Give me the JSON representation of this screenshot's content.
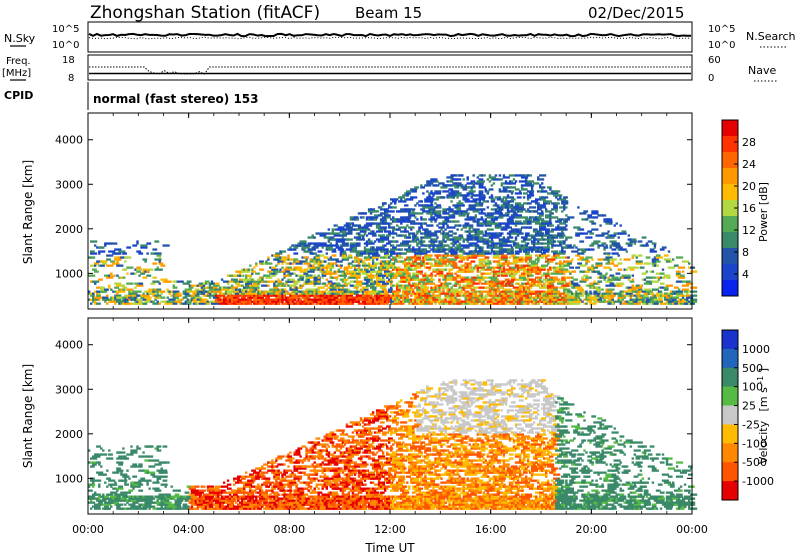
{
  "header": {
    "station": "Zhongshan Station (fitACF)",
    "beam": "Beam 15",
    "date": "02/Dec/2015"
  },
  "nsky": {
    "label": "N.Sky",
    "ticks": [
      "10^5",
      "10^0"
    ],
    "right_ticks": [
      "10^5",
      "10^0"
    ],
    "right_label": "N.Search"
  },
  "freq": {
    "label_top": "Freq.",
    "label_bottom": "[MHz]",
    "ticks": [
      "18",
      "8"
    ],
    "right_ticks": [
      "60",
      "0"
    ],
    "right_label": "Nave"
  },
  "cpid": {
    "label": "CPID",
    "text": "normal (fast stereo) 153"
  },
  "chart_data": [
    {
      "type": "heatmap",
      "name": "power",
      "ylabel": "Slant Range [km]",
      "yticks": [
        "1000",
        "2000",
        "3000",
        "4000"
      ],
      "ylim": [
        200,
        4600
      ],
      "x": [
        "00:00",
        "04:00",
        "08:00",
        "12:00",
        "16:00",
        "20:00",
        "00:00"
      ],
      "colorbar": {
        "label": "Power [dB]",
        "ticks": [
          "28",
          "24",
          "20",
          "16",
          "12",
          "8",
          "4"
        ],
        "colors": [
          "#e60000",
          "#ff3300",
          "#ff6600",
          "#ff9900",
          "#ffbb00",
          "#b3d940",
          "#55aa55",
          "#3a8a6a",
          "#2255aa",
          "#1a44cc",
          "#0a22ee"
        ]
      }
    },
    {
      "type": "heatmap",
      "name": "velocity",
      "ylabel": "Slant Range [km]",
      "ylabel_unit": "[m s",
      "ylabel_exp": "-1",
      "yticks": [
        "1000",
        "2000",
        "3000",
        "4000"
      ],
      "ylim": [
        200,
        4600
      ],
      "x": [
        "00:00",
        "04:00",
        "08:00",
        "12:00",
        "16:00",
        "20:00",
        "00:00"
      ],
      "xlabel": "Time UT",
      "colorbar": {
        "label": "Velocity",
        "ticks": [
          "1000",
          "500",
          "100",
          "25",
          "-25",
          "-100",
          "-500",
          "-1000"
        ],
        "colors": [
          "#1a33cc",
          "#2266bb",
          "#3a8a6a",
          "#55bb44",
          "#c8c8c8",
          "#ffbb00",
          "#ff8800",
          "#ff5500",
          "#e60000"
        ]
      }
    }
  ]
}
